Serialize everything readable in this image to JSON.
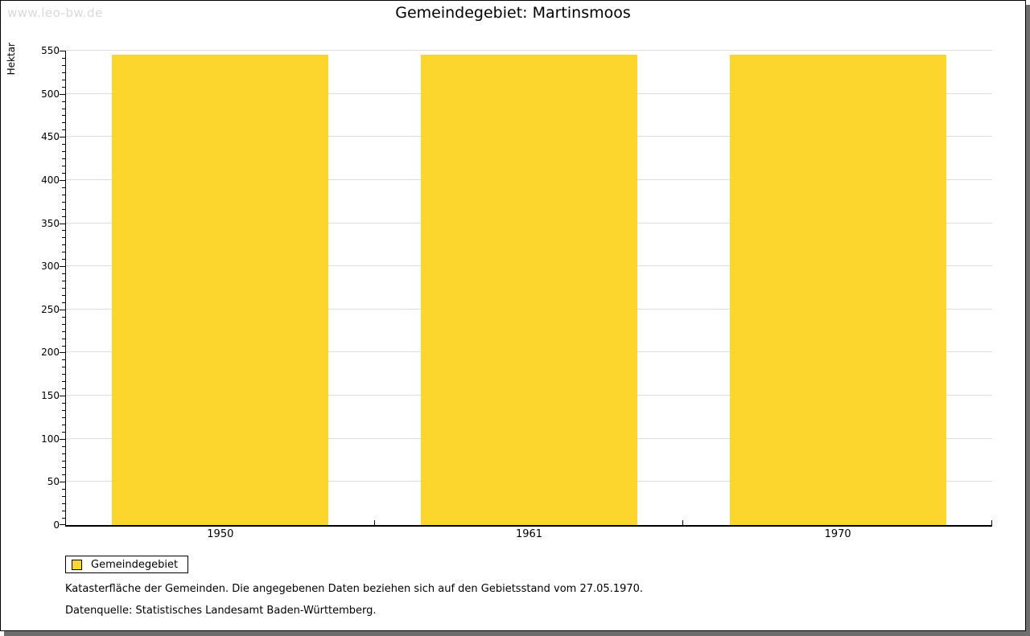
{
  "watermark": "www.leo-bw.de",
  "header": {
    "title": "Gemeindegebiet: Martinsmoos"
  },
  "chart_data": {
    "type": "bar",
    "title": "Gemeindegebiet: Martinsmoos",
    "categories": [
      "1950",
      "1961",
      "1970"
    ],
    "series": [
      {
        "name": "Gemeindegebiet",
        "values": [
          545,
          545,
          545
        ]
      }
    ],
    "xlabel": "",
    "ylabel": "Hektar",
    "ylim": [
      0,
      550
    ],
    "y_major_step": 50,
    "y_minor_divisions": 6,
    "grid": true,
    "legend_position": "bottom-left",
    "bar_color": "#FDD62D"
  },
  "legend": {
    "items": [
      {
        "label": "Gemeindegebiet",
        "color": "#FDD62D"
      }
    ]
  },
  "footer": {
    "line1": "Katasterfläche der Gemeinden. Die angegebenen Daten beziehen sich auf den Gebietsstand vom 27.05.1970.",
    "line2": "Datenquelle: Statistisches Landesamt Baden-Württemberg."
  },
  "colors": {
    "bar": "#FDD62D",
    "grid": "#DDDDDD",
    "axis": "#000000",
    "watermark": "#D9D9D9",
    "frame_shadow": "#6E6E6E"
  }
}
